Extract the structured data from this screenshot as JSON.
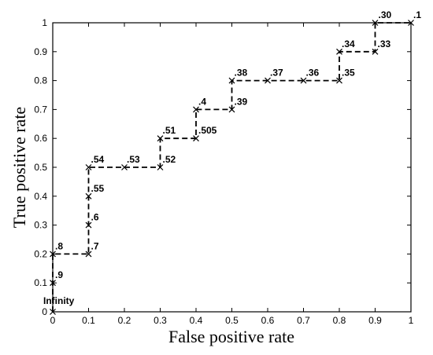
{
  "chart_data": {
    "type": "line",
    "title": "",
    "xlabel": "False positive rate",
    "ylabel": "True positive rate",
    "xlim": [
      0,
      1
    ],
    "ylim": [
      0,
      1
    ],
    "xticks": [
      "0",
      "0.1",
      "0.2",
      "0.3",
      "0.4",
      "0.5",
      "0.6",
      "0.7",
      "0.8",
      "0.9",
      "1"
    ],
    "yticks": [
      "0",
      "0.1",
      "0.2",
      "0.3",
      "0.4",
      "0.5",
      "0.6",
      "0.7",
      "0.8",
      "0.9",
      "1"
    ],
    "grid": false,
    "legend": "none",
    "line_style": "dashed",
    "marker": "x",
    "line_color": "#000000",
    "points": [
      {
        "x": 0.0,
        "y": 0.0,
        "label": "Infinity"
      },
      {
        "x": 0.0,
        "y": 0.1,
        "label": ".9"
      },
      {
        "x": 0.0,
        "y": 0.2,
        "label": ".8"
      },
      {
        "x": 0.1,
        "y": 0.2,
        "label": ".7"
      },
      {
        "x": 0.1,
        "y": 0.3,
        "label": ".6"
      },
      {
        "x": 0.1,
        "y": 0.4,
        "label": ".55"
      },
      {
        "x": 0.1,
        "y": 0.5,
        "label": ".54"
      },
      {
        "x": 0.2,
        "y": 0.5,
        "label": ".53"
      },
      {
        "x": 0.3,
        "y": 0.5,
        "label": ".52"
      },
      {
        "x": 0.3,
        "y": 0.6,
        "label": ".51"
      },
      {
        "x": 0.4,
        "y": 0.6,
        "label": ".505"
      },
      {
        "x": 0.4,
        "y": 0.7,
        "label": ".4"
      },
      {
        "x": 0.5,
        "y": 0.7,
        "label": ".39"
      },
      {
        "x": 0.5,
        "y": 0.8,
        "label": ".38"
      },
      {
        "x": 0.6,
        "y": 0.8,
        "label": ".37"
      },
      {
        "x": 0.7,
        "y": 0.8,
        "label": ".36"
      },
      {
        "x": 0.8,
        "y": 0.8,
        "label": ".35"
      },
      {
        "x": 0.8,
        "y": 0.9,
        "label": ".34"
      },
      {
        "x": 0.9,
        "y": 0.9,
        "label": ".33"
      },
      {
        "x": 0.9,
        "y": 1.0,
        "label": ".30"
      },
      {
        "x": 1.0,
        "y": 1.0,
        "label": ".1"
      }
    ]
  }
}
